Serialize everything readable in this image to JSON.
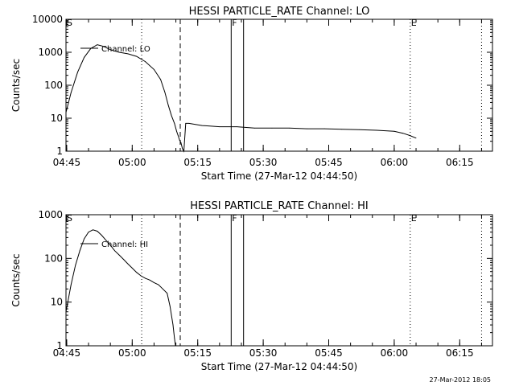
{
  "footer_timestamp": "27-Mar-2012 18:05",
  "chart_data": [
    {
      "type": "line",
      "title": "HESSI PARTICLE_RATE Channel: LO",
      "xlabel": "Start Time (27-Mar-12 04:44:50)",
      "ylabel": "Counts/sec",
      "y_scale": "log",
      "ylim": [
        1,
        10000
      ],
      "y_ticks": [
        "1",
        "10",
        "100",
        "1000",
        "10000"
      ],
      "xlim": [
        "04:44:50",
        "06:22:30"
      ],
      "x_ticks": [
        "04:45",
        "05:00",
        "05:15",
        "05:30",
        "05:45",
        "06:00",
        "06:15"
      ],
      "legend": {
        "label": "Channel: LO",
        "position": "top-left"
      },
      "markers": [
        {
          "label": "S",
          "time": "04:44:50",
          "style": "none"
        },
        {
          "label": "",
          "time": "05:02:10",
          "style": "dotted"
        },
        {
          "label": "",
          "time": "05:11:00",
          "style": "dashed"
        },
        {
          "label": "F",
          "time": "05:22:40",
          "style": "solid"
        },
        {
          "label": "",
          "time": "05:25:30",
          "style": "solid"
        },
        {
          "label": "E",
          "time": "06:03:40",
          "style": "dotted"
        },
        {
          "label": "",
          "time": "06:20:00",
          "style": "dotted"
        }
      ],
      "series": [
        {
          "name": "Channel: LO",
          "x": [
            "04:44:50",
            "04:46:00",
            "04:47:30",
            "04:49:00",
            "04:50:30",
            "04:52:00",
            "04:53:30",
            "04:55:00",
            "04:57:00",
            "04:59:00",
            "05:01:00",
            "05:03:00",
            "05:05:00",
            "05:06:30",
            "05:07:30",
            "05:08:15",
            "05:09:00",
            "05:09:40",
            "05:10:10",
            "05:10:30",
            "05:10:50",
            "05:11:10",
            "05:11:30",
            "05:11:50",
            "05:12:15",
            "05:13:00",
            "05:16:00",
            "05:20:00",
            "05:24:00",
            "05:28:00",
            "05:32:00",
            "05:36:00",
            "05:40:00",
            "05:44:00",
            "05:48:00",
            "05:52:00",
            "05:56:00",
            "06:00:00",
            "06:02:00",
            "06:03:30",
            "06:05:00"
          ],
          "y": [
            15,
            60,
            250,
            700,
            1300,
            1700,
            1500,
            1200,
            1000,
            900,
            750,
            520,
            300,
            150,
            60,
            25,
            12,
            7,
            4,
            3,
            2.2,
            1.8,
            1.2,
            1,
            7,
            7,
            6,
            5.5,
            5.5,
            5,
            5,
            5,
            4.8,
            4.8,
            4.6,
            4.5,
            4.3,
            4,
            3.5,
            3,
            2.5
          ]
        }
      ]
    },
    {
      "type": "line",
      "title": "HESSI PARTICLE_RATE Channel: HI",
      "xlabel": "Start Time (27-Mar-12 04:44:50)",
      "ylabel": "Counts/sec",
      "y_scale": "log",
      "ylim": [
        1,
        1000
      ],
      "y_ticks": [
        "1",
        "10",
        "100",
        "1000"
      ],
      "xlim": [
        "04:44:50",
        "06:22:30"
      ],
      "x_ticks": [
        "04:45",
        "05:00",
        "05:15",
        "05:30",
        "05:45",
        "06:00",
        "06:15"
      ],
      "legend": {
        "label": "Channel: HI",
        "position": "top-left"
      },
      "markers": [
        {
          "label": "S",
          "time": "04:44:50",
          "style": "none"
        },
        {
          "label": "",
          "time": "05:02:10",
          "style": "dotted"
        },
        {
          "label": "",
          "time": "05:11:00",
          "style": "dashed"
        },
        {
          "label": "F",
          "time": "05:22:40",
          "style": "solid"
        },
        {
          "label": "",
          "time": "05:25:30",
          "style": "solid"
        },
        {
          "label": "E",
          "time": "06:03:40",
          "style": "dotted"
        },
        {
          "label": "",
          "time": "06:20:00",
          "style": "dotted"
        }
      ],
      "series": [
        {
          "name": "Channel: HI",
          "x": [
            "04:44:50",
            "04:46:00",
            "04:47:00",
            "04:48:00",
            "04:49:00",
            "04:50:00",
            "04:51:00",
            "04:52:00",
            "04:53:00",
            "04:54:00",
            "04:55:00",
            "04:56:00",
            "04:57:00",
            "04:58:00",
            "04:59:00",
            "05:00:00",
            "05:01:00",
            "05:02:00",
            "05:03:00",
            "05:04:00",
            "05:05:00",
            "05:06:00",
            "05:07:00",
            "05:08:00",
            "05:08:40",
            "05:09:20",
            "05:09:40",
            "05:09:55"
          ],
          "y": [
            6,
            25,
            70,
            150,
            280,
            400,
            450,
            420,
            340,
            260,
            200,
            150,
            120,
            95,
            75,
            60,
            48,
            40,
            35,
            32,
            28,
            25,
            20,
            16,
            8,
            3,
            1.5,
            1
          ]
        }
      ]
    }
  ]
}
